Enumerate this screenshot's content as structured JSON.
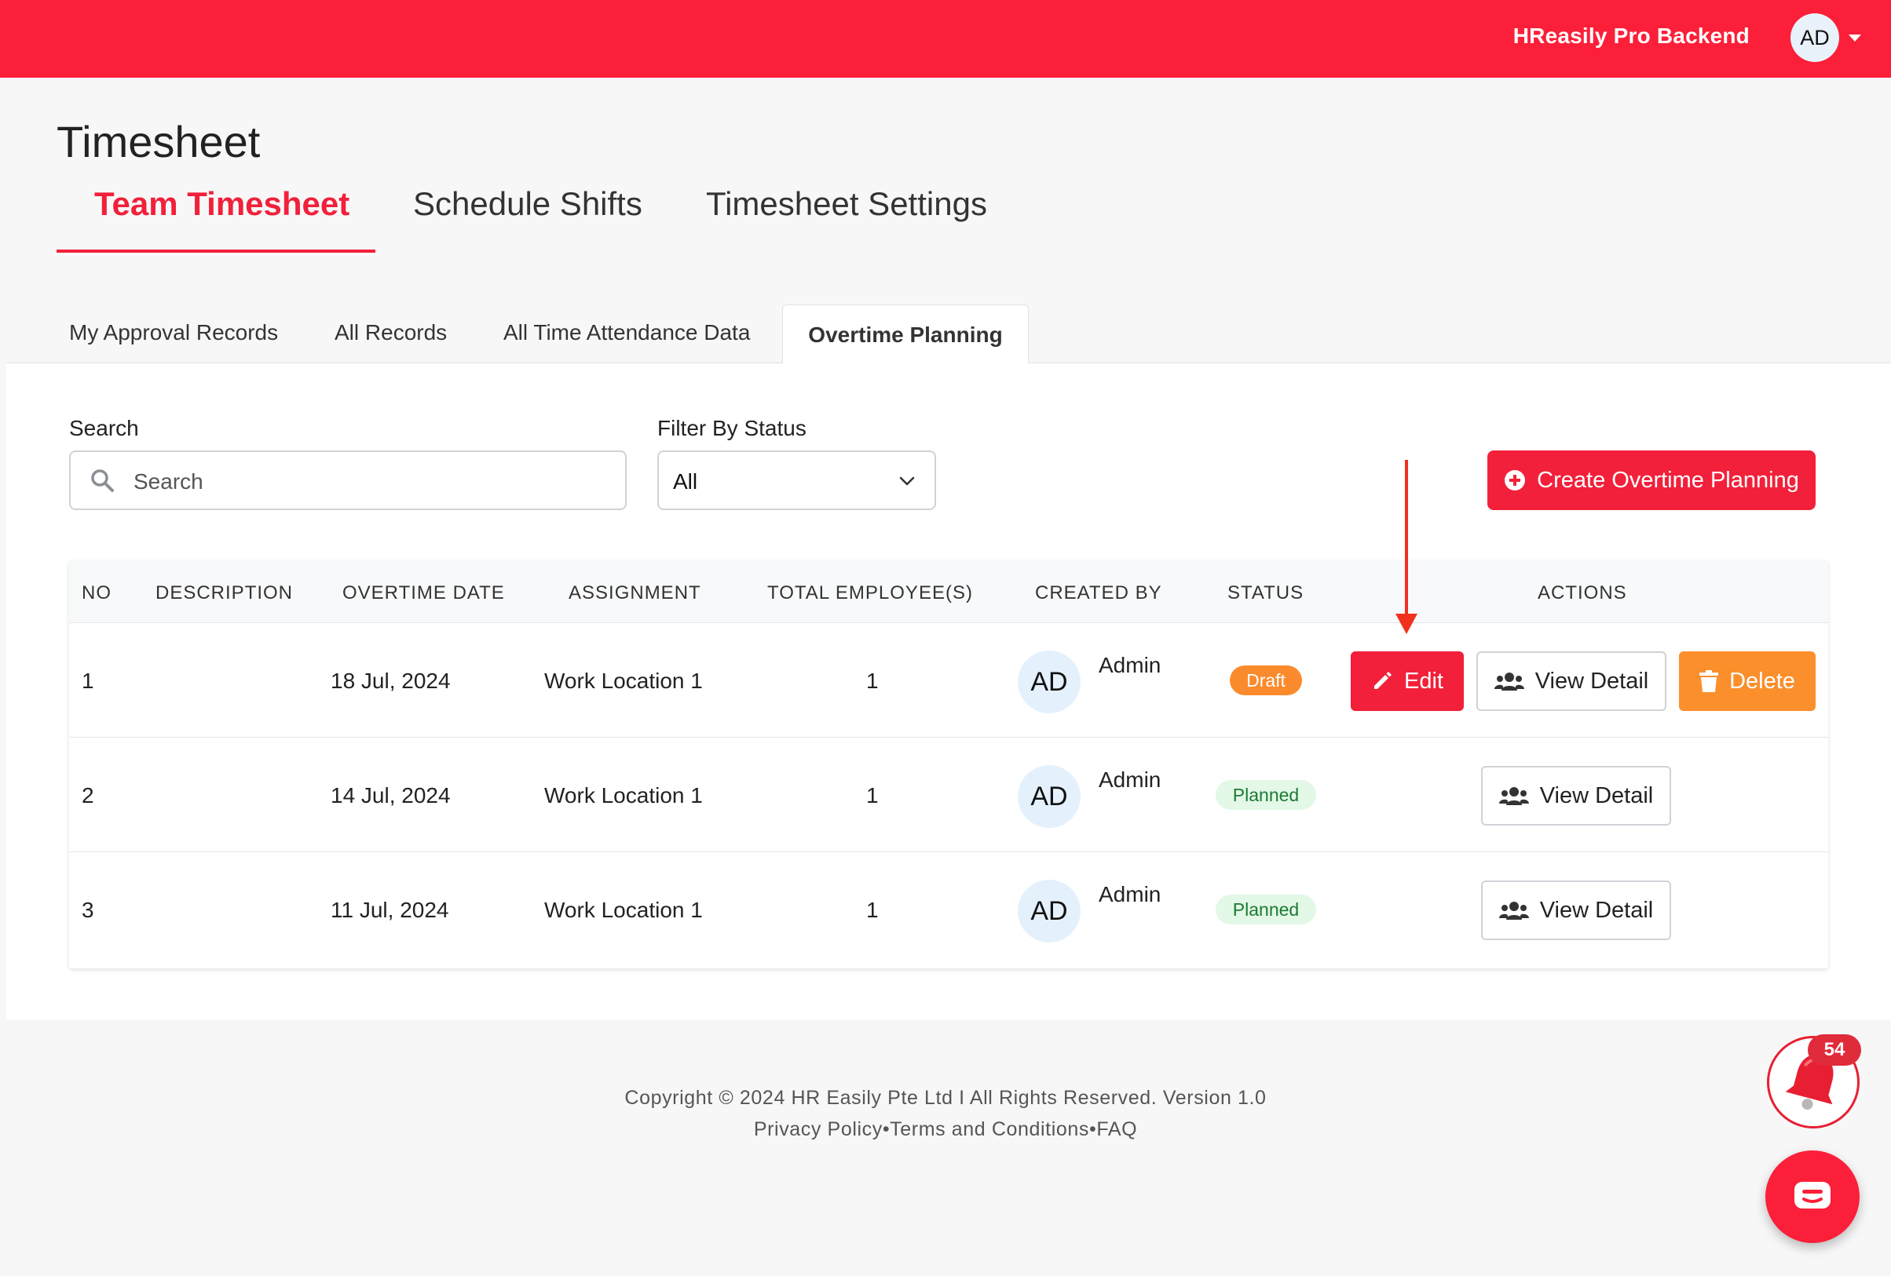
{
  "header": {
    "brand": "HReasily Pro Backend",
    "avatar_initials": "AD"
  },
  "page": {
    "title": "Timesheet"
  },
  "main_tabs": [
    {
      "label": "Team Timesheet",
      "active": true
    },
    {
      "label": "Schedule Shifts",
      "active": false
    },
    {
      "label": "Timesheet Settings",
      "active": false
    }
  ],
  "sub_tabs": [
    {
      "label": "My Approval Records",
      "active": false
    },
    {
      "label": "All Records",
      "active": false
    },
    {
      "label": "All Time Attendance Data",
      "active": false
    },
    {
      "label": "Overtime Planning",
      "active": true
    }
  ],
  "filters": {
    "search_label": "Search",
    "search_placeholder": "Search",
    "status_label": "Filter By Status",
    "status_value": "All"
  },
  "create_button": {
    "label": "Create Overtime Planning"
  },
  "table": {
    "headers": [
      "NO",
      "DESCRIPTION",
      "OVERTIME DATE",
      "ASSIGNMENT",
      "TOTAL EMPLOYEE(S)",
      "CREATED BY",
      "STATUS",
      "ACTIONS"
    ],
    "rows": [
      {
        "no": "1",
        "description": "",
        "date": "18 Jul, 2024",
        "assignment": "Work Location 1",
        "total": "1",
        "avatar": "AD",
        "created_by": "Admin",
        "status": "Draft",
        "edit_label": "Edit",
        "view_label": "View Detail",
        "delete_label": "Delete"
      },
      {
        "no": "2",
        "description": "",
        "date": "14 Jul, 2024",
        "assignment": "Work Location 1",
        "total": "1",
        "avatar": "AD",
        "created_by": "Admin",
        "status": "Planned",
        "view_label": "View Detail"
      },
      {
        "no": "3",
        "description": "",
        "date": "11 Jul, 2024",
        "assignment": "Work Location 1",
        "total": "1",
        "avatar": "AD",
        "created_by": "Admin",
        "status": "Planned",
        "view_label": "View Detail"
      }
    ]
  },
  "footer": {
    "copyright": "Copyright © 2024 HR Easily Pte Ltd I All Rights Reserved. Version 1.0",
    "links": "Privacy Policy•Terms and Conditions•FAQ"
  },
  "notifications": {
    "count": "54"
  },
  "colors": {
    "brand_red": "#fc1f39",
    "draft_orange": "#fb8a2c",
    "planned_green": "#1b7a33",
    "annotation_red": "#f0311e"
  },
  "icons": {
    "search": "search-icon",
    "select": "chevron-down-icon",
    "create": "plus-circle-icon",
    "edit": "pencil-icon",
    "view": "users-icon",
    "delete": "trash-icon",
    "notifications": "bell-icon",
    "chat": "chat-icon"
  }
}
